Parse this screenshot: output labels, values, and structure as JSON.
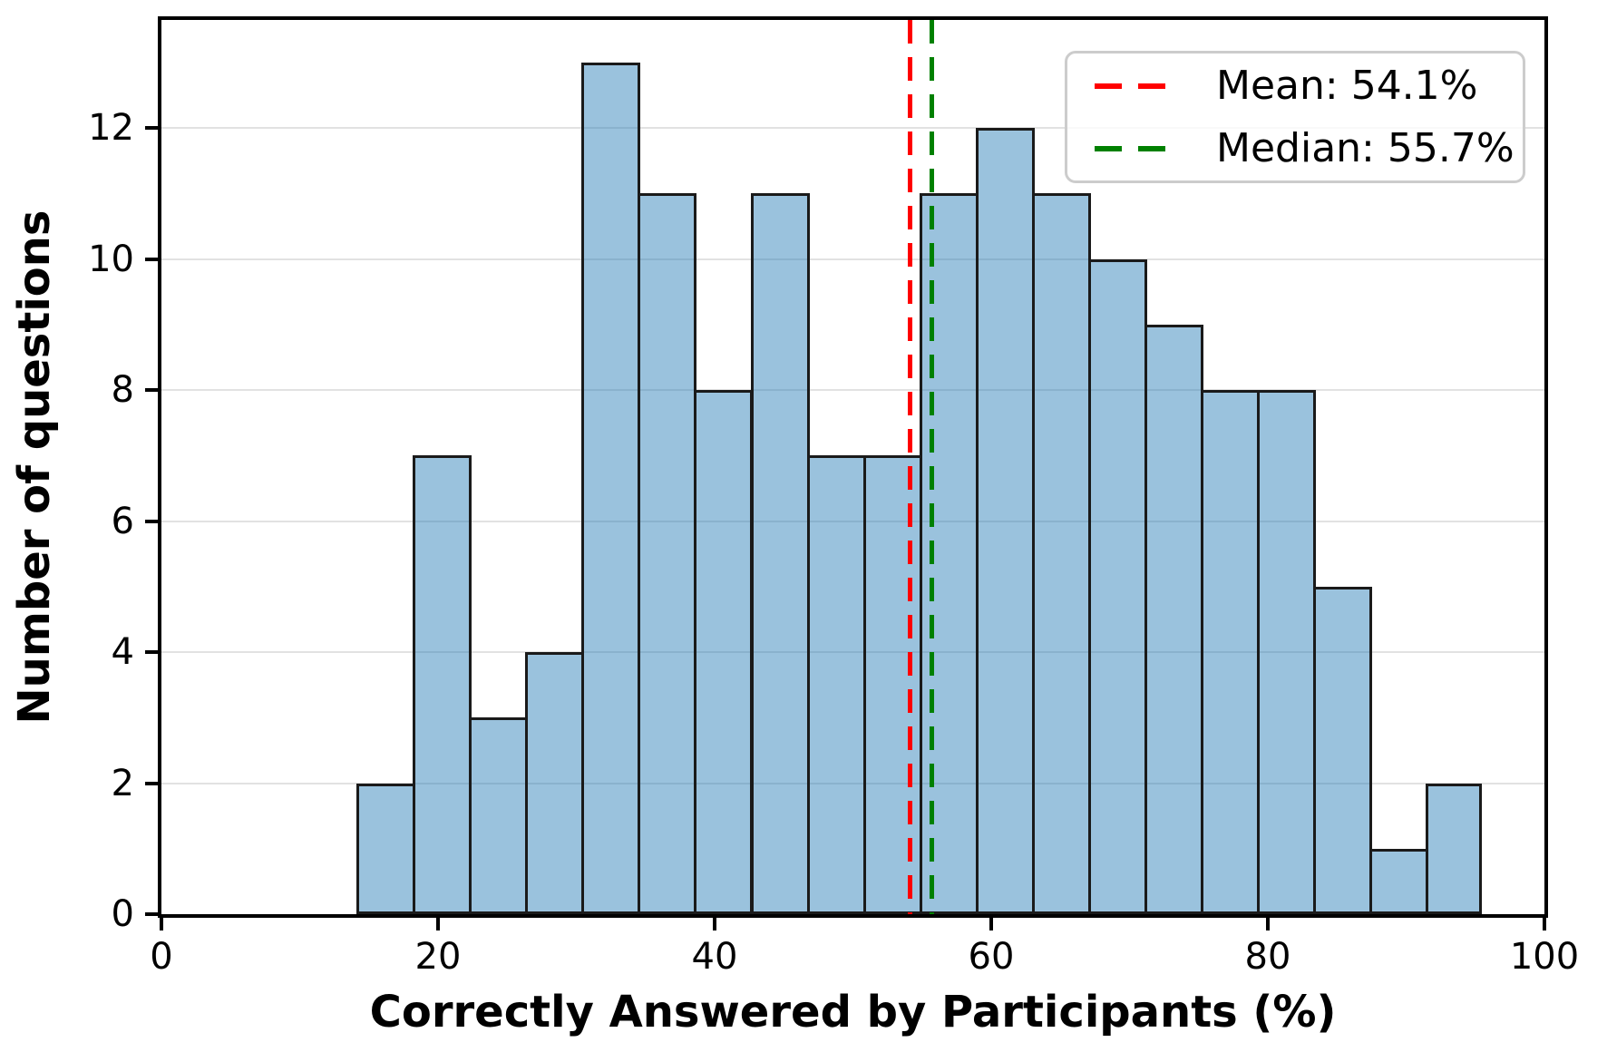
{
  "chart_data": {
    "type": "bar",
    "subtype": "histogram",
    "title": "",
    "xlabel": "Correctly Answered by Participants (%)",
    "ylabel": "Number of questions",
    "bin_edges": [
      14.1,
      18.17,
      22.24,
      26.31,
      30.38,
      34.45,
      38.52,
      42.59,
      46.66,
      50.73,
      54.8,
      58.87,
      62.94,
      67.01,
      71.08,
      75.15,
      79.22,
      83.29,
      87.36,
      91.43,
      95.5
    ],
    "counts": [
      2,
      7,
      3,
      4,
      13,
      11,
      8,
      11,
      7,
      7,
      11,
      12,
      11,
      10,
      9,
      8,
      8,
      5,
      1,
      2
    ],
    "mean": 54.1,
    "median": 55.7,
    "xlim": [
      0,
      100
    ],
    "ylim": [
      0,
      13.65
    ],
    "x_ticks": [
      0,
      20,
      40,
      60,
      80,
      100
    ],
    "y_ticks": [
      0,
      2,
      4,
      6,
      8,
      10,
      12
    ],
    "grid": "horizontal",
    "legend": {
      "position": "upper right",
      "entries": [
        {
          "label": "Mean: 54.1%",
          "color": "#ff0000",
          "style": "dashed"
        },
        {
          "label": "Median: 55.7%",
          "color": "#008000",
          "style": "dashed"
        }
      ]
    },
    "colors": {
      "bar_fill": "rgba(31,119,180,0.45)",
      "bar_fill_on_white": "#9cc3de",
      "bar_edge": "#1a1a1a",
      "grid_color": "#e2e2e2",
      "mean_line": "#ff0000",
      "median_line": "#008000",
      "spine": "#000000",
      "legend_border": "#cccccc"
    }
  }
}
